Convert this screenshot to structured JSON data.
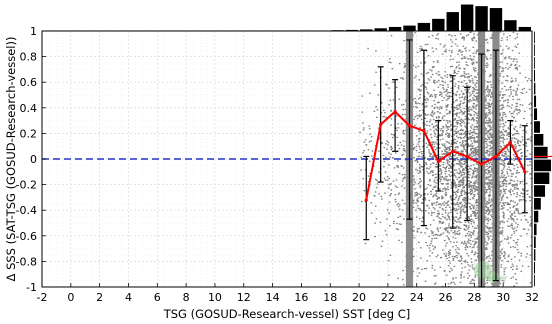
{
  "chart_data": {
    "type": "line",
    "xlabel": "TSG (GOSUD-Research-vessel) SST [deg C]",
    "ylabel": "Δ SSS (SAT-TSG (GOSUD-Research-vessel))",
    "xlim": [
      -2,
      32
    ],
    "ylim": [
      -1,
      1
    ],
    "grid": true,
    "x_ticks": [
      "-2",
      "0",
      "2",
      "4",
      "6",
      "8",
      "10",
      "12",
      "14",
      "16",
      "18",
      "20",
      "22",
      "24",
      "26",
      "28",
      "30",
      "32"
    ],
    "y_ticks": [
      "1",
      "0.8",
      "0.6",
      "0.4",
      "0.2",
      "0",
      "-0.2",
      "-0.4",
      "-0.6",
      "-0.8",
      "-1"
    ],
    "reference_line": {
      "y": 0,
      "style": "dashed",
      "color": "#2233cc"
    },
    "colors": {
      "mean_line": "#ff0000",
      "error_bars": "#000000",
      "scatter": "#808080",
      "histograms": "#000000",
      "watermark": "#9ccf9c"
    },
    "series": [
      {
        "x": [
          20.5,
          21.5,
          22.5,
          23.5,
          24.5,
          25.5,
          26.5,
          27.5,
          28.5,
          29.5,
          30.5,
          31.5
        ],
        "mean": [
          -0.32,
          0.27,
          0.37,
          0.26,
          0.22,
          -0.02,
          0.06,
          0.02,
          -0.04,
          0.02,
          0.13,
          -0.1
        ],
        "std_low": [
          -0.63,
          -0.18,
          0.06,
          -0.47,
          -0.52,
          -0.25,
          -0.54,
          -0.48,
          -1.0,
          -0.95,
          -0.04,
          -0.42
        ],
        "std_high": [
          0.02,
          0.72,
          0.62,
          0.93,
          0.85,
          0.3,
          0.65,
          0.56,
          0.82,
          0.85,
          0.3,
          0.26
        ]
      }
    ],
    "scatter_cloud": {
      "x_range": [
        20.3,
        32
      ],
      "density_by_sst": [
        {
          "x": 20.5,
          "n": 40,
          "spread": 0.55
        },
        {
          "x": 21.5,
          "n": 70,
          "spread": 0.7
        },
        {
          "x": 22.5,
          "n": 110,
          "spread": 0.8
        },
        {
          "x": 23.5,
          "n": 180,
          "spread": 0.9
        },
        {
          "x": 24.5,
          "n": 260,
          "spread": 0.95
        },
        {
          "x": 25.5,
          "n": 380,
          "spread": 0.95
        },
        {
          "x": 26.5,
          "n": 520,
          "spread": 0.95
        },
        {
          "x": 27.5,
          "n": 650,
          "spread": 0.95
        },
        {
          "x": 28.5,
          "n": 720,
          "spread": 0.95
        },
        {
          "x": 29.5,
          "n": 600,
          "spread": 0.95
        },
        {
          "x": 30.5,
          "n": 380,
          "spread": 0.9
        },
        {
          "x": 31.5,
          "n": 150,
          "spread": 0.75
        }
      ],
      "dense_columns": [
        23.5,
        28.5,
        29.5
      ]
    },
    "top_histogram": {
      "bins": [
        -1.5,
        -0.5,
        0.5,
        1.5,
        2.5,
        3.5,
        4.5,
        5.5,
        6.5,
        7.5,
        8.5,
        9.5,
        10.5,
        11.5,
        12.5,
        13.5,
        14.5,
        15.5,
        16.5,
        17.5,
        18.5,
        19.5,
        20.5,
        21.5,
        22.5,
        23.5,
        24.5,
        25.5,
        26.5,
        27.5,
        28.5,
        29.5,
        30.5,
        31.5
      ],
      "counts": [
        0.02,
        0.02,
        0.02,
        0.02,
        0.02,
        0.02,
        0.02,
        0.02,
        0.02,
        0.02,
        0.02,
        0.02,
        0.02,
        0.02,
        0.02,
        0.02,
        0.02,
        0.02,
        0.02,
        0.02,
        0.03,
        0.04,
        0.06,
        0.1,
        0.15,
        0.2,
        0.3,
        0.45,
        0.7,
        0.98,
        0.92,
        0.85,
        0.4,
        0.15
      ]
    },
    "right_histogram": {
      "bins": [
        0.95,
        0.85,
        0.75,
        0.65,
        0.55,
        0.45,
        0.35,
        0.25,
        0.15,
        0.05,
        -0.05,
        -0.15,
        -0.25,
        -0.35,
        -0.45,
        -0.55,
        -0.65,
        -0.75,
        -0.85,
        -0.95
      ],
      "counts": [
        0.05,
        0.05,
        0.05,
        0.06,
        0.08,
        0.12,
        0.18,
        0.35,
        0.55,
        0.8,
        1.0,
        0.9,
        0.65,
        0.4,
        0.25,
        0.15,
        0.1,
        0.08,
        0.06,
        0.05
      ],
      "marker_y": 0.02,
      "marker_color": "#ff0000"
    },
    "watermark": {
      "text": "Ifremer"
    }
  }
}
